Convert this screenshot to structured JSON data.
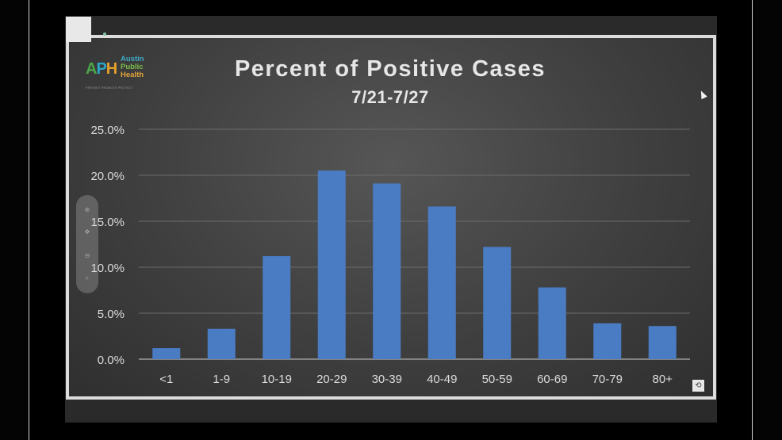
{
  "logo": {
    "mark": [
      "A",
      "P",
      "H"
    ],
    "words": [
      "Austin",
      "Public",
      "Health"
    ],
    "tagline": "PREVENT  PROMOTE  PROTECT"
  },
  "chart_data": {
    "type": "bar",
    "title": "Percent of Positive Cases",
    "subtitle": "7/21-7/27",
    "categories": [
      "<1",
      "1-9",
      "10-19",
      "20-29",
      "30-39",
      "40-49",
      "50-59",
      "60-69",
      "70-79",
      "80+"
    ],
    "values": [
      1.2,
      3.3,
      11.2,
      20.5,
      19.1,
      16.6,
      12.2,
      7.8,
      3.9,
      3.6
    ],
    "ylim": [
      0,
      25
    ],
    "yticks": [
      0,
      5,
      10,
      15,
      20,
      25
    ],
    "ytick_labels": [
      "0.0%",
      "5.0%",
      "10.0%",
      "15.0%",
      "20.0%",
      "25.0%"
    ],
    "xlabel": "",
    "ylabel": "",
    "grid": true,
    "legend": "none",
    "colors": {
      "bar": "#4a7cc4",
      "grid": "#6a6a6a",
      "text": "#dcdcdc",
      "title": "#e6e6e6"
    }
  },
  "viewer": {
    "zoom_icons": [
      "zoom-in-icon",
      "pan-icon",
      "zoom-out-icon",
      "search-icon"
    ],
    "corner_icon": "restore-icon"
  }
}
